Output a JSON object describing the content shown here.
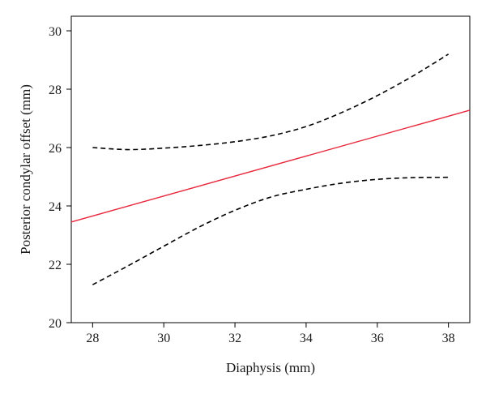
{
  "chart_data": {
    "type": "line",
    "title": "",
    "xlabel": "Diaphysis (mm)",
    "ylabel": "Posterior condylar offset (mm)",
    "xlim": [
      27.4,
      38.6
    ],
    "ylim": [
      20,
      30.5
    ],
    "xticks": [
      "28",
      "30",
      "32",
      "34",
      "36",
      "38"
    ],
    "yticks": [
      "20",
      "22",
      "24",
      "26",
      "28",
      "30"
    ],
    "grid": false,
    "series": [
      {
        "style": "solid",
        "color": "#e8273c",
        "x": [
          27.4,
          38.6
        ],
        "y": [
          23.45,
          27.28
        ]
      },
      {
        "style": "dashed",
        "color": "#000000",
        "x": [
          28,
          29,
          30,
          31,
          32,
          33,
          34,
          35,
          36,
          37,
          38
        ],
        "y": [
          26.0,
          25.93,
          25.98,
          26.07,
          26.2,
          26.4,
          26.72,
          27.2,
          27.78,
          28.45,
          29.2
        ]
      },
      {
        "style": "dashed",
        "color": "#000000",
        "x": [
          28,
          29,
          30,
          31,
          32,
          33,
          34,
          35,
          36,
          37,
          38
        ],
        "y": [
          21.3,
          21.95,
          22.62,
          23.28,
          23.85,
          24.3,
          24.57,
          24.78,
          24.91,
          24.97,
          24.98
        ]
      }
    ]
  }
}
